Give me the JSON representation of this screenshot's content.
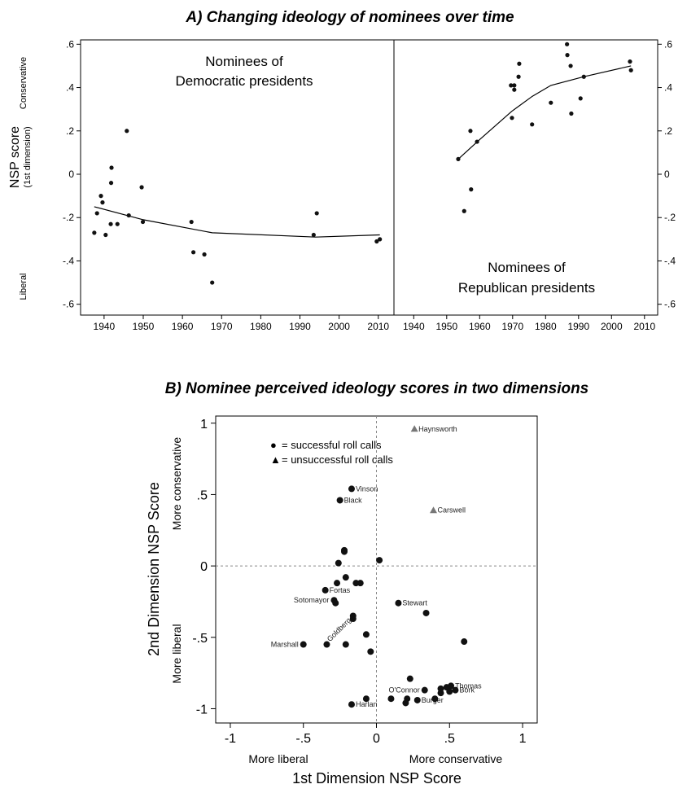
{
  "chart_data": [
    {
      "type": "scatter",
      "title": "A) Changing ideology of nominees over time",
      "ylabel": "NSP score",
      "ylabel_sub": "(1st dimension)",
      "ylabel_top": "Conservative",
      "ylabel_bottom": "Liberal",
      "ylim": [
        -0.65,
        0.62
      ],
      "yticks": [
        ".6",
        ".4",
        ".2",
        "0",
        "-.2",
        "-.4",
        "-.6"
      ],
      "ytick_values": [
        0.6,
        0.4,
        0.2,
        0,
        -0.2,
        -0.4,
        -0.6
      ],
      "panels": [
        {
          "name": "Nominees of Democratic presidents",
          "label_line1": "Nominees of",
          "label_line2": "Democratic presidents",
          "xlim": [
            1934,
            2014
          ],
          "xticks": [
            "1940",
            "1950",
            "1960",
            "1970",
            "1980",
            "1990",
            "2000",
            "2010"
          ],
          "xtick_values": [
            1940,
            1950,
            1960,
            1970,
            1980,
            1990,
            2000,
            2010
          ],
          "points": [
            {
              "x": 1937.5,
              "y": -0.27
            },
            {
              "x": 1938.2,
              "y": -0.18
            },
            {
              "x": 1939.2,
              "y": -0.1
            },
            {
              "x": 1939.6,
              "y": -0.13
            },
            {
              "x": 1940.4,
              "y": -0.28
            },
            {
              "x": 1941.7,
              "y": -0.23
            },
            {
              "x": 1941.8,
              "y": -0.04
            },
            {
              "x": 1941.9,
              "y": 0.03
            },
            {
              "x": 1943.4,
              "y": -0.23
            },
            {
              "x": 1945.8,
              "y": 0.2
            },
            {
              "x": 1946.3,
              "y": -0.19
            },
            {
              "x": 1949.6,
              "y": -0.06
            },
            {
              "x": 1949.9,
              "y": -0.22
            },
            {
              "x": 1962.3,
              "y": -0.22
            },
            {
              "x": 1962.8,
              "y": -0.36
            },
            {
              "x": 1965.6,
              "y": -0.37
            },
            {
              "x": 1967.6,
              "y": -0.5
            },
            {
              "x": 1993.5,
              "y": -0.28
            },
            {
              "x": 1994.3,
              "y": -0.18
            },
            {
              "x": 2009.6,
              "y": -0.31
            },
            {
              "x": 2010.4,
              "y": -0.3
            }
          ],
          "trend": [
            {
              "x": 1937.5,
              "y": -0.15
            },
            {
              "x": 1950,
              "y": -0.21
            },
            {
              "x": 1967.6,
              "y": -0.27
            },
            {
              "x": 1994,
              "y": -0.29
            },
            {
              "x": 2010.4,
              "y": -0.28
            }
          ]
        },
        {
          "name": "Nominees of Republican presidents",
          "label_line1": "Nominees of",
          "label_line2": "Republican presidents",
          "xlim": [
            1934,
            2014
          ],
          "xticks": [
            "1940",
            "1950",
            "1960",
            "1970",
            "1980",
            "1990",
            "2000",
            "2010"
          ],
          "xtick_values": [
            1940,
            1950,
            1960,
            1970,
            1980,
            1990,
            2000,
            2010
          ],
          "points": [
            {
              "x": 1953.5,
              "y": 0.07
            },
            {
              "x": 1955.3,
              "y": -0.17
            },
            {
              "x": 1957.2,
              "y": 0.2
            },
            {
              "x": 1957.4,
              "y": -0.07
            },
            {
              "x": 1959.2,
              "y": 0.15
            },
            {
              "x": 1969.5,
              "y": 0.41
            },
            {
              "x": 1969.8,
              "y": 0.26
            },
            {
              "x": 1970.5,
              "y": 0.39
            },
            {
              "x": 1970.5,
              "y": 0.41
            },
            {
              "x": 1971.8,
              "y": 0.45
            },
            {
              "x": 1972.0,
              "y": 0.51
            },
            {
              "x": 1975.9,
              "y": 0.23
            },
            {
              "x": 1981.6,
              "y": 0.33
            },
            {
              "x": 1986.5,
              "y": 0.6
            },
            {
              "x": 1986.6,
              "y": 0.55
            },
            {
              "x": 1987.6,
              "y": 0.5
            },
            {
              "x": 1987.8,
              "y": 0.28
            },
            {
              "x": 1990.6,
              "y": 0.35
            },
            {
              "x": 1991.6,
              "y": 0.45
            },
            {
              "x": 2005.6,
              "y": 0.52
            },
            {
              "x": 2005.9,
              "y": 0.48
            }
          ],
          "trend": [
            {
              "x": 1953.5,
              "y": 0.07
            },
            {
              "x": 1960,
              "y": 0.16
            },
            {
              "x": 1969.7,
              "y": 0.29
            },
            {
              "x": 1976,
              "y": 0.36
            },
            {
              "x": 1981.6,
              "y": 0.41
            },
            {
              "x": 1991.6,
              "y": 0.45
            },
            {
              "x": 2005.9,
              "y": 0.5
            }
          ]
        }
      ]
    },
    {
      "type": "scatter",
      "title": "B) Nominee perceived ideology scores in two dimensions",
      "xlabel": "1st Dimension NSP Score",
      "ylabel": "2nd Dimension NSP Score",
      "xlabel_left": "More liberal",
      "xlabel_right": "More conservative",
      "ylabel_top": "More conservative",
      "ylabel_bottom": "More liberal",
      "xlim": [
        -1.1,
        1.1
      ],
      "ylim": [
        -1.1,
        1.05
      ],
      "xticks": [
        "-1",
        "-.5",
        "0",
        ".5",
        "1"
      ],
      "xtick_values": [
        -1,
        -0.5,
        0,
        0.5,
        1
      ],
      "yticks": [
        "1",
        ".5",
        "0",
        "-.5",
        "-1"
      ],
      "ytick_values": [
        1,
        0.5,
        0,
        -0.5,
        -1
      ],
      "legend": {
        "placement": "top-left",
        "entries": [
          {
            "symbol": "●",
            "label": "= successful roll calls"
          },
          {
            "symbol": "▲",
            "label": "= unsuccessful roll calls"
          }
        ]
      },
      "successful": [
        {
          "x": -0.17,
          "y": 0.54,
          "label": "Vinson"
        },
        {
          "x": -0.25,
          "y": 0.46,
          "label": "Black"
        },
        {
          "x": -0.22,
          "y": 0.11,
          "label": ""
        },
        {
          "x": -0.22,
          "y": 0.1,
          "label": ""
        },
        {
          "x": 0.02,
          "y": 0.04,
          "label": ""
        },
        {
          "x": -0.26,
          "y": 0.02,
          "label": ""
        },
        {
          "x": -0.21,
          "y": -0.08,
          "label": ""
        },
        {
          "x": -0.27,
          "y": -0.12,
          "label": ""
        },
        {
          "x": -0.14,
          "y": -0.12,
          "label": ""
        },
        {
          "x": -0.11,
          "y": -0.12,
          "label": ""
        },
        {
          "x": -0.35,
          "y": -0.17,
          "label": "Fortas"
        },
        {
          "x": -0.29,
          "y": -0.24,
          "label": "Sotomayor"
        },
        {
          "x": -0.28,
          "y": -0.26,
          "label": ""
        },
        {
          "x": 0.15,
          "y": -0.26,
          "label": "Stewart"
        },
        {
          "x": 0.34,
          "y": -0.33,
          "label": ""
        },
        {
          "x": -0.16,
          "y": -0.35,
          "label": ""
        },
        {
          "x": -0.16,
          "y": -0.37,
          "label": ""
        },
        {
          "x": -0.34,
          "y": -0.55,
          "label": "Goldberg"
        },
        {
          "x": -0.5,
          "y": -0.55,
          "label": "Marshall"
        },
        {
          "x": -0.07,
          "y": -0.48,
          "label": ""
        },
        {
          "x": -0.21,
          "y": -0.55,
          "label": ""
        },
        {
          "x": -0.04,
          "y": -0.6,
          "label": ""
        },
        {
          "x": 0.6,
          "y": -0.53,
          "label": ""
        },
        {
          "x": 0.23,
          "y": -0.79,
          "label": ""
        },
        {
          "x": 0.33,
          "y": -0.87,
          "label": "O'Connor"
        },
        {
          "x": 0.44,
          "y": -0.86,
          "label": ""
        },
        {
          "x": 0.48,
          "y": -0.85,
          "label": ""
        },
        {
          "x": 0.51,
          "y": -0.84,
          "label": "Thomas"
        },
        {
          "x": 0.54,
          "y": -0.87,
          "label": "Bork"
        },
        {
          "x": 0.5,
          "y": -0.88,
          "label": ""
        },
        {
          "x": 0.44,
          "y": -0.89,
          "label": ""
        },
        {
          "x": 0.1,
          "y": -0.93,
          "label": ""
        },
        {
          "x": 0.21,
          "y": -0.93,
          "label": ""
        },
        {
          "x": 0.28,
          "y": -0.94,
          "label": "Burger"
        },
        {
          "x": 0.4,
          "y": -0.93,
          "label": ""
        },
        {
          "x": 0.2,
          "y": -0.96,
          "label": ""
        },
        {
          "x": -0.07,
          "y": -0.93,
          "label": ""
        },
        {
          "x": -0.17,
          "y": -0.97,
          "label": "Harlan"
        }
      ],
      "unsuccessful": [
        {
          "x": 0.26,
          "y": 0.96,
          "label": "Haynsworth"
        },
        {
          "x": 0.39,
          "y": 0.39,
          "label": "Carswell"
        }
      ]
    }
  ],
  "colors": {
    "point": "#111111",
    "unsuccessful": "#777777",
    "axis": "#000000",
    "refline": "#888888"
  }
}
